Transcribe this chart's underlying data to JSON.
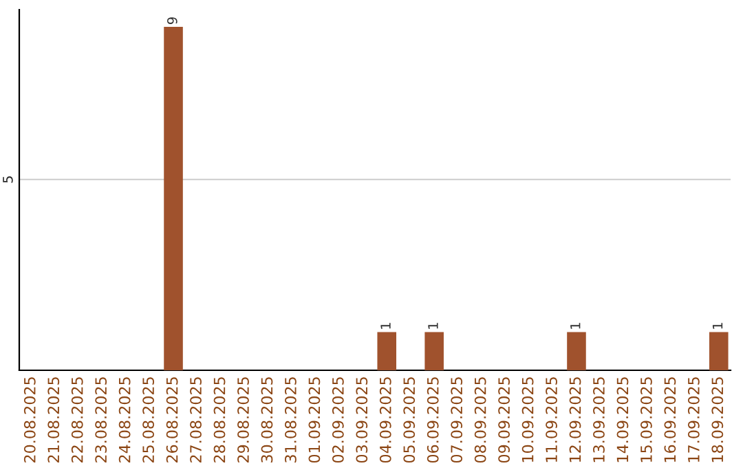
{
  "chart_data": {
    "type": "bar",
    "categories": [
      "20.08.2025",
      "21.08.2025",
      "22.08.2025",
      "23.08.2025",
      "24.08.2025",
      "25.08.2025",
      "26.08.2025",
      "27.08.2025",
      "28.08.2025",
      "29.08.2025",
      "30.08.2025",
      "31.08.2025",
      "01.09.2025",
      "02.09.2025",
      "03.09.2025",
      "04.09.2025",
      "05.09.2025",
      "06.09.2025",
      "07.09.2025",
      "08.09.2025",
      "09.09.2025",
      "10.09.2025",
      "11.09.2025",
      "12.09.2025",
      "13.09.2025",
      "14.09.2025",
      "15.09.2025",
      "16.09.2025",
      "17.09.2025",
      "18.09.2025"
    ],
    "values": [
      0,
      0,
      0,
      0,
      0,
      0,
      9,
      0,
      0,
      0,
      0,
      0,
      0,
      0,
      0,
      1,
      0,
      1,
      0,
      0,
      0,
      0,
      0,
      1,
      0,
      0,
      0,
      0,
      0,
      1
    ],
    "value_labels": [
      null,
      null,
      null,
      null,
      null,
      null,
      "9",
      null,
      null,
      null,
      null,
      null,
      null,
      null,
      null,
      "1",
      null,
      "1",
      null,
      null,
      null,
      null,
      null,
      "1",
      null,
      null,
      null,
      null,
      null,
      "1"
    ],
    "color": "#a0522d",
    "ylim": [
      0,
      9.45
    ],
    "yticks": [
      5
    ],
    "grid": "y"
  }
}
